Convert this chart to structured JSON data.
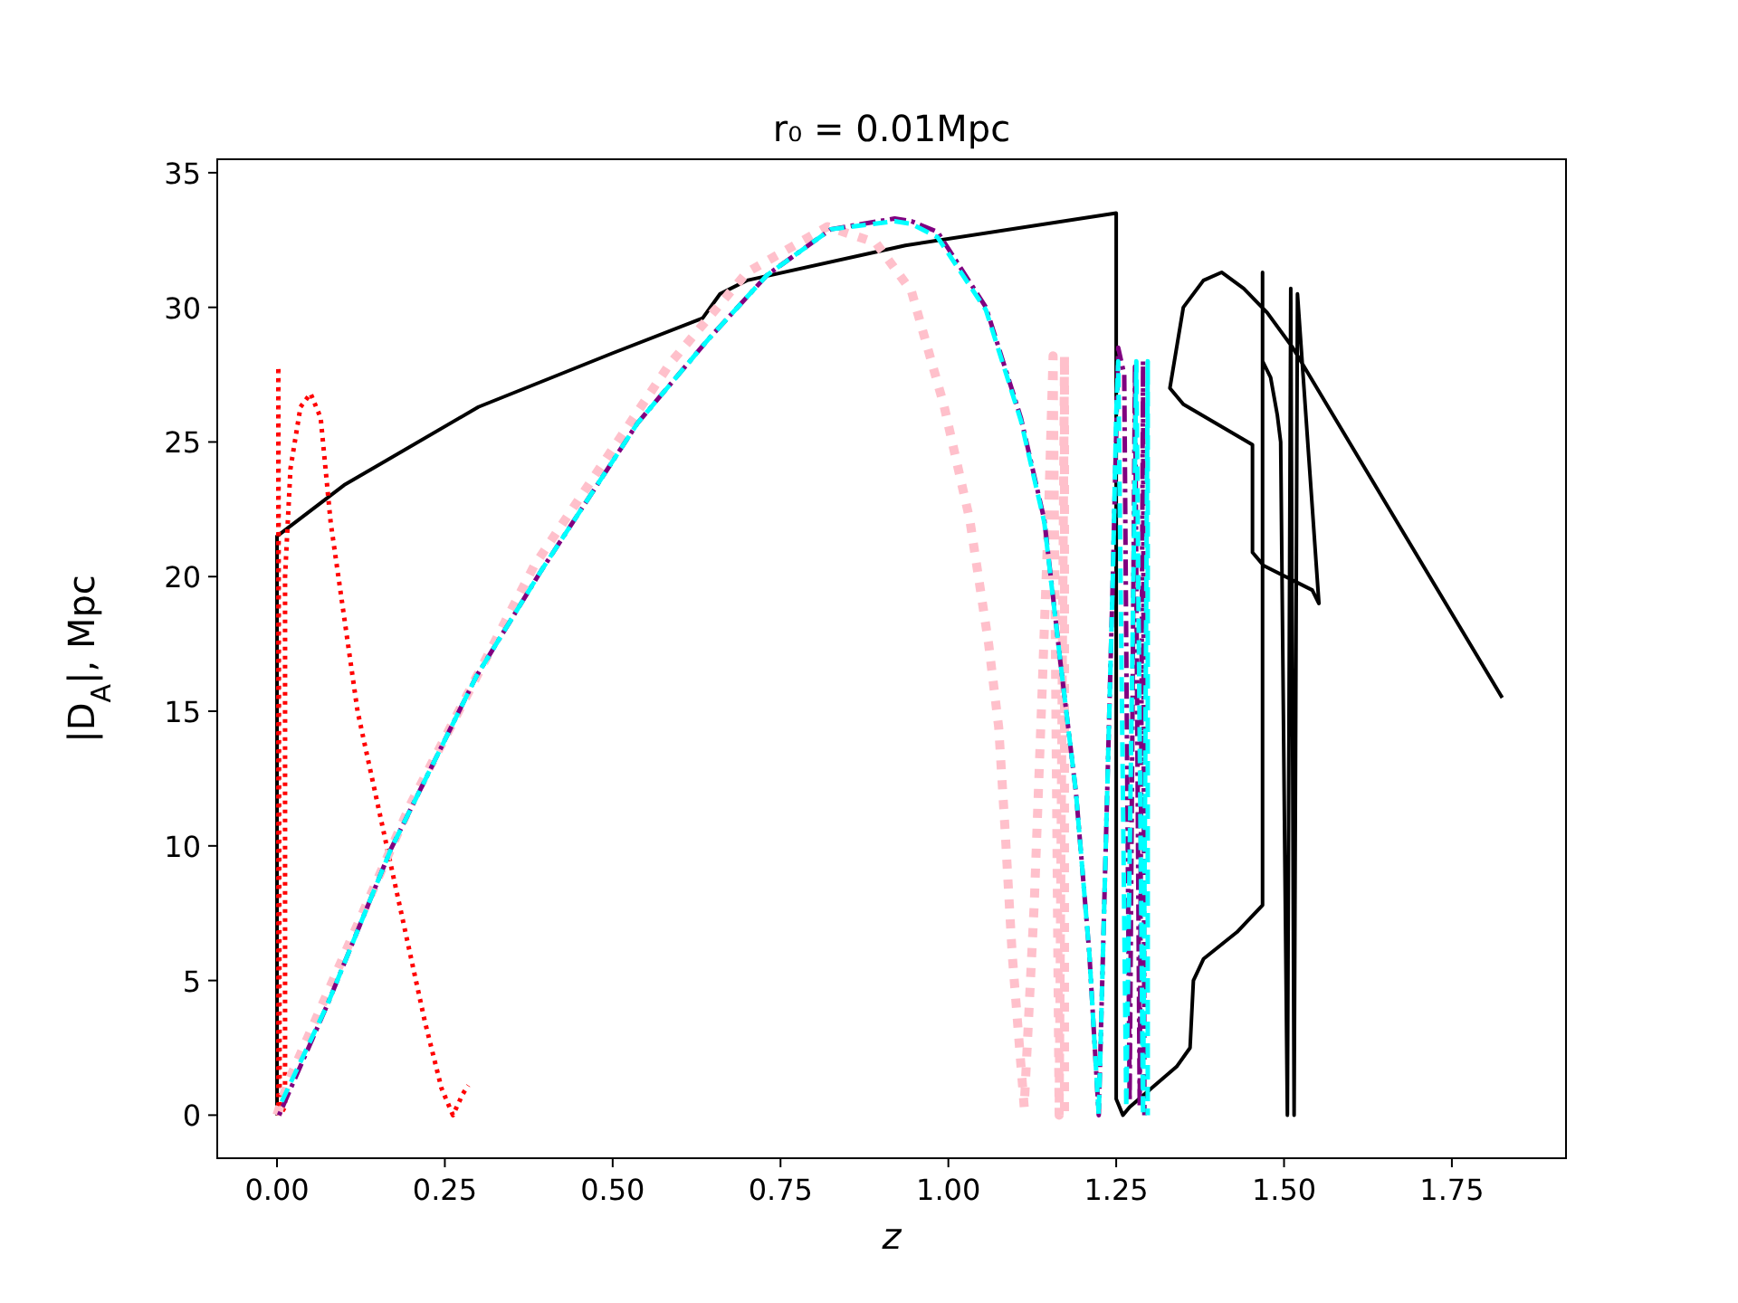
{
  "chart_data": {
    "type": "line",
    "title": "r₀ = 0.01Mpc",
    "xlabel": "z",
    "ylabel": "|D$_{A}$|, Mpc",
    "xlim": [
      -0.089,
      1.92
    ],
    "ylim": [
      -1.6,
      35.5
    ],
    "xticks": [
      {
        "value": 0,
        "label": "0.00"
      },
      {
        "value": 0.25,
        "label": "0.25"
      },
      {
        "value": 0.5,
        "label": "0.50"
      },
      {
        "value": 0.75,
        "label": "0.75"
      },
      {
        "value": 1,
        "label": "1.00"
      },
      {
        "value": 1.25,
        "label": "1.25"
      },
      {
        "value": 1.5,
        "label": "1.50"
      },
      {
        "value": 1.75,
        "label": "1.75"
      }
    ],
    "yticks": [
      0,
      5,
      10,
      15,
      20,
      25,
      30,
      35
    ],
    "grid": false,
    "marker": "none",
    "series": [
      {
        "color": "#000000",
        "line_style": "solid",
        "x": [
          0,
          0,
          0.1,
          0.3,
          0.5,
          0.634,
          0.66,
          0.7,
          0.936,
          1.25,
          1.25,
          1.26,
          1.27,
          1.34,
          1.36,
          1.365,
          1.38,
          1.43,
          1.468,
          1.468,
          1.468,
          1.48,
          1.49,
          1.495,
          1.505,
          1.51,
          1.515,
          1.52,
          1.552,
          1.542,
          1.47,
          1.453,
          1.453,
          1.35,
          1.33,
          1.35,
          1.38,
          1.407,
          1.44,
          1.475,
          1.513,
          1.825
        ],
        "values": [
          0,
          21.5,
          23.4,
          26.3,
          28.3,
          29.6,
          30.5,
          31,
          32.3,
          33.5,
          0.6,
          0,
          0.3,
          1.8,
          2.5,
          5,
          5.8,
          6.8,
          7.8,
          31.3,
          28,
          27.4,
          26,
          25,
          0,
          30.7,
          0,
          30.5,
          19,
          19.5,
          20.4,
          20.9,
          24.9,
          26.4,
          27,
          30,
          31,
          31.3,
          30.7,
          29.8,
          28.5,
          15.5
        ]
      },
      {
        "color": "#ff0000",
        "line_style": "dotted",
        "x": [
          0.002,
          0.002,
          0.004,
          0.012,
          0.012,
          0.02,
          0.035,
          0.05,
          0.065,
          0.08,
          0.12,
          0.166,
          0.22,
          0.245,
          0.262,
          0.277,
          0.285
        ],
        "values": [
          0,
          27.8,
          0,
          0.3,
          20,
          24,
          26.3,
          26.8,
          25.9,
          22,
          15,
          9.7,
          3.5,
          1,
          0,
          0.8,
          1.1
        ]
      },
      {
        "color": "#ffc0cb",
        "line_style": "dotted",
        "x": [
          0,
          0.016,
          0.2,
          0.383,
          0.585,
          0.7,
          0.82,
          0.892,
          0.945,
          0.993,
          1.032,
          1.06,
          1.075,
          1.084,
          1.095,
          1.113,
          1.128,
          1.14,
          1.15,
          1.156,
          1.165,
          1.173,
          1.173
        ],
        "values": [
          0,
          1.2,
          11.6,
          20.4,
          27.9,
          31.3,
          33,
          32.4,
          30.6,
          26.4,
          22.1,
          17.5,
          14.4,
          10.8,
          6,
          0.3,
          7.9,
          16,
          23,
          28.2,
          0,
          28.2,
          0
        ]
      },
      {
        "color": "#800080",
        "line_style": "dashdot",
        "x": [
          0.003,
          0.075,
          0.17,
          0.297,
          0.393,
          0.537,
          0.642,
          0.73,
          0.825,
          0.92,
          0.945,
          0.984,
          1.056,
          1.108,
          1.143,
          1.167,
          1.19,
          1.21,
          1.224,
          1.245,
          1.253,
          1.262,
          1.27,
          1.278,
          1.285,
          1.29,
          1.292
        ],
        "values": [
          0,
          4.1,
          9.9,
          16.3,
          20.2,
          25.7,
          28.8,
          31.2,
          32.9,
          33.3,
          33.2,
          32.8,
          30,
          25.9,
          22.1,
          16.8,
          12,
          6,
          0,
          20,
          28.5,
          27.5,
          0.5,
          27.8,
          0.3,
          28,
          0
        ]
      },
      {
        "color": "#00ffff",
        "line_style": "dashed",
        "x": [
          0.007,
          0.075,
          0.17,
          0.297,
          0.393,
          0.537,
          0.642,
          0.73,
          0.825,
          0.92,
          0.945,
          0.984,
          1.056,
          1.108,
          1.143,
          1.167,
          1.19,
          1.21,
          1.224,
          1.245,
          1.25,
          1.253,
          1.265,
          1.28,
          1.29,
          1.297,
          1.297
        ],
        "values": [
          0.5,
          4.1,
          9.9,
          16.3,
          20.2,
          25.7,
          28.8,
          31.2,
          32.9,
          33.2,
          33.1,
          32.6,
          29.9,
          25.8,
          22,
          16.8,
          12,
          6,
          0,
          20,
          26,
          28,
          0.3,
          28,
          0,
          28,
          0
        ]
      }
    ]
  }
}
